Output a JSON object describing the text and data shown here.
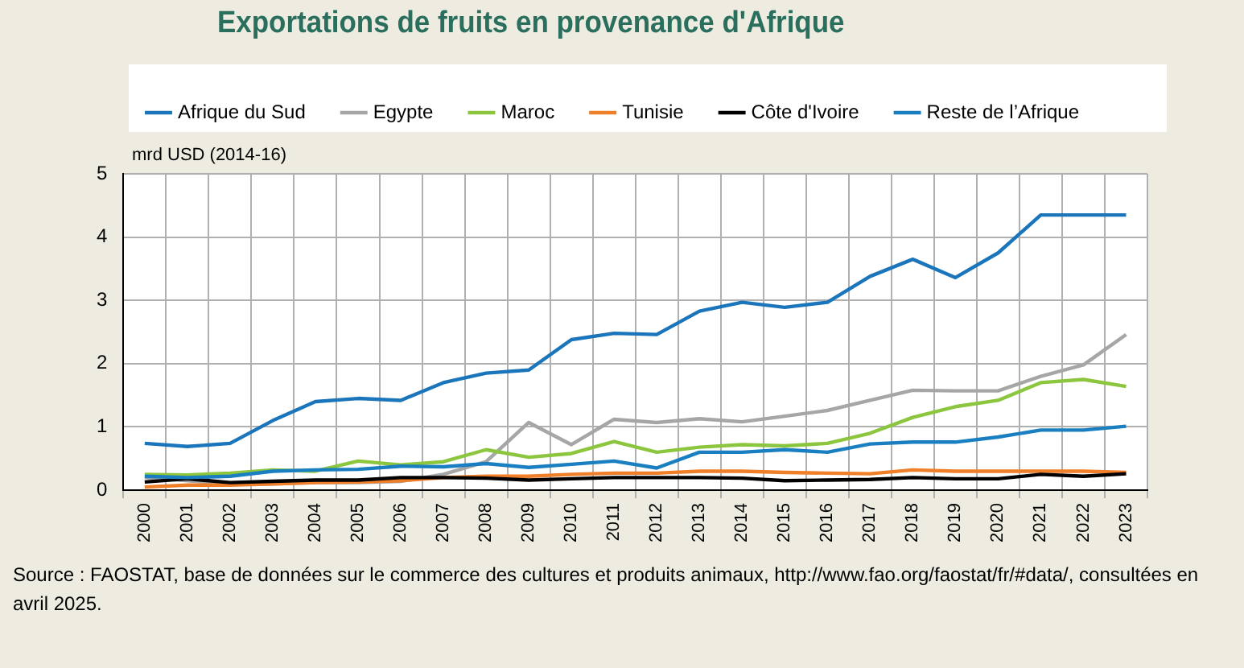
{
  "chart_data": {
    "type": "line",
    "title": "Exportations de fruits en provenance d'Afrique",
    "ylabel": "mrd USD (2014-16)",
    "categories": [
      "2000",
      "2001",
      "2002",
      "2003",
      "2004",
      "2005",
      "2006",
      "2007",
      "2008",
      "2009",
      "2010",
      "2011",
      "2012",
      "2013",
      "2014",
      "2015",
      "2016",
      "2017",
      "2018",
      "2019",
      "2020",
      "2021",
      "2022",
      "2023"
    ],
    "series": [
      {
        "name": "Afrique du Sud",
        "color": "#1b75bb",
        "values": [
          0.74,
          0.69,
          0.74,
          1.1,
          1.4,
          1.45,
          1.42,
          1.7,
          1.85,
          1.9,
          2.38,
          2.48,
          2.46,
          2.83,
          2.97,
          2.89,
          2.97,
          3.38,
          3.65,
          3.36,
          3.75,
          4.35,
          4.35,
          4.35
        ]
      },
      {
        "name": "Egypte",
        "color": "#a6a6a6",
        "values": [
          0.2,
          0.15,
          0.1,
          0.1,
          0.12,
          0.12,
          0.14,
          0.25,
          0.45,
          1.07,
          0.72,
          1.12,
          1.07,
          1.13,
          1.08,
          1.17,
          1.26,
          1.42,
          1.58,
          1.57,
          1.57,
          1.8,
          1.98,
          2.46
        ]
      },
      {
        "name": "Maroc",
        "color": "#8cc63f",
        "values": [
          0.25,
          0.24,
          0.27,
          0.32,
          0.3,
          0.46,
          0.4,
          0.45,
          0.64,
          0.52,
          0.58,
          0.77,
          0.6,
          0.68,
          0.72,
          0.7,
          0.74,
          0.9,
          1.15,
          1.32,
          1.42,
          1.7,
          1.75,
          1.64
        ]
      },
      {
        "name": "Tunisie",
        "color": "#f07f29",
        "values": [
          0.05,
          0.08,
          0.08,
          0.1,
          0.12,
          0.13,
          0.15,
          0.2,
          0.22,
          0.22,
          0.25,
          0.27,
          0.27,
          0.3,
          0.3,
          0.28,
          0.27,
          0.26,
          0.32,
          0.3,
          0.3,
          0.3,
          0.3,
          0.28
        ]
      },
      {
        "name": "Côte d'Ivoire",
        "color": "#000000",
        "values": [
          0.13,
          0.18,
          0.12,
          0.14,
          0.16,
          0.16,
          0.2,
          0.2,
          0.19,
          0.16,
          0.18,
          0.2,
          0.2,
          0.2,
          0.19,
          0.15,
          0.16,
          0.17,
          0.2,
          0.18,
          0.18,
          0.25,
          0.22,
          0.26
        ]
      },
      {
        "name": "Reste de l’Afrique",
        "color": "#1a7fc1",
        "values": [
          0.22,
          0.2,
          0.22,
          0.3,
          0.32,
          0.33,
          0.38,
          0.37,
          0.42,
          0.36,
          0.41,
          0.46,
          0.35,
          0.6,
          0.6,
          0.64,
          0.6,
          0.73,
          0.76,
          0.76,
          0.84,
          0.95,
          0.95,
          1.01
        ]
      }
    ],
    "ylim": [
      0,
      5
    ],
    "yticks": [
      0,
      1,
      2,
      3,
      4,
      5
    ],
    "grid": true,
    "legend": "top",
    "marker": "none",
    "line_style": "solid",
    "annotations": [
      "Source : FAOSTAT, base de données sur le commerce des cultures et produits animaux, http://www.fao.org/faostat/fr/#data/, consultées en avril 2025."
    ]
  }
}
